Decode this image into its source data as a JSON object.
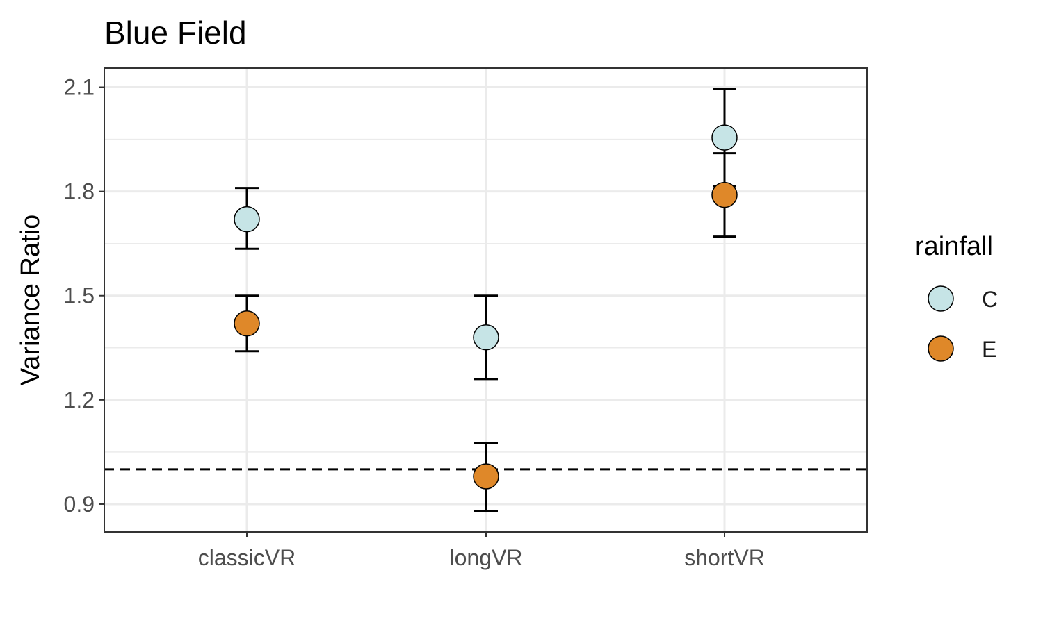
{
  "chart_data": {
    "type": "scatter",
    "title": "Blue Field",
    "xlabel": "",
    "ylabel": "Variance Ratio",
    "categories": [
      "classicVR",
      "longVR",
      "shortVR"
    ],
    "yticks": [
      "0.9",
      "1.2",
      "1.5",
      "1.8",
      "2.1"
    ],
    "ylim": [
      0.82,
      2.155
    ],
    "reference_line": {
      "y": 1.0,
      "style": "dashed"
    },
    "grid": true,
    "legend": {
      "title": "rainfall",
      "position": "right"
    },
    "series": [
      {
        "name": "C",
        "color": "#c6e4e6",
        "points": [
          {
            "x": "classicVR",
            "y": 1.72,
            "lower": 1.635,
            "upper": 1.81
          },
          {
            "x": "longVR",
            "y": 1.38,
            "lower": 1.26,
            "upper": 1.5
          },
          {
            "x": "shortVR",
            "y": 1.955,
            "lower": 1.815,
            "upper": 2.095
          }
        ]
      },
      {
        "name": "E",
        "color": "#df8829",
        "points": [
          {
            "x": "classicVR",
            "y": 1.42,
            "lower": 1.34,
            "upper": 1.5
          },
          {
            "x": "longVR",
            "y": 0.98,
            "lower": 0.88,
            "upper": 1.075
          },
          {
            "x": "shortVR",
            "y": 1.79,
            "lower": 1.67,
            "upper": 1.91
          }
        ]
      }
    ]
  }
}
